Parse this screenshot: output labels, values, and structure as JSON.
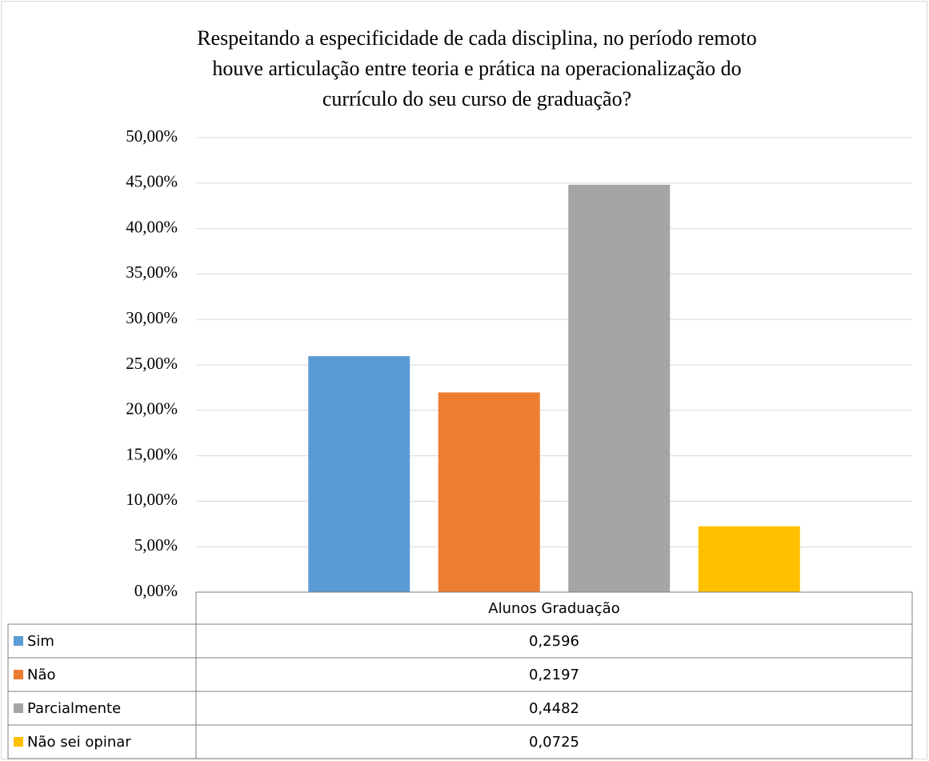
{
  "chart_data": {
    "type": "bar",
    "title": [
      "Respeitando a especificidade de cada disciplina, no período remoto",
      "houve articulação entre teoria e prática na operacionalização do",
      "currículo do seu curso de graduação?"
    ],
    "categories": [
      "Alunos Graduação"
    ],
    "series": [
      {
        "name": "Sim",
        "color": "#5b9bd5",
        "values": [
          0.2596
        ],
        "value_labels": [
          "0,2596"
        ]
      },
      {
        "name": "Não",
        "color": "#ed7d31",
        "values": [
          0.2197
        ],
        "value_labels": [
          "0,2197"
        ]
      },
      {
        "name": "Parcialmente",
        "color": "#a5a5a5",
        "values": [
          0.4482
        ],
        "value_labels": [
          "0,4482"
        ]
      },
      {
        "name": "Não sei opinar",
        "color": "#ffc000",
        "values": [
          0.0725
        ],
        "value_labels": [
          "0,0725"
        ]
      }
    ],
    "ylim": [
      0,
      0.5
    ],
    "yticks": [
      {
        "value": 0,
        "label": "0,00%"
      },
      {
        "value": 0.05,
        "label": "5,00%"
      },
      {
        "value": 0.1,
        "label": "10,00%"
      },
      {
        "value": 0.15,
        "label": "15,00%"
      },
      {
        "value": 0.2,
        "label": "20,00%"
      },
      {
        "value": 0.25,
        "label": "25,00%"
      },
      {
        "value": 0.3,
        "label": "30,00%"
      },
      {
        "value": 0.35,
        "label": "35,00%"
      },
      {
        "value": 0.4,
        "label": "40,00%"
      },
      {
        "value": 0.45,
        "label": "45,00%"
      },
      {
        "value": 0.5,
        "label": "50,00%"
      }
    ],
    "grid": true,
    "legend": "table"
  }
}
